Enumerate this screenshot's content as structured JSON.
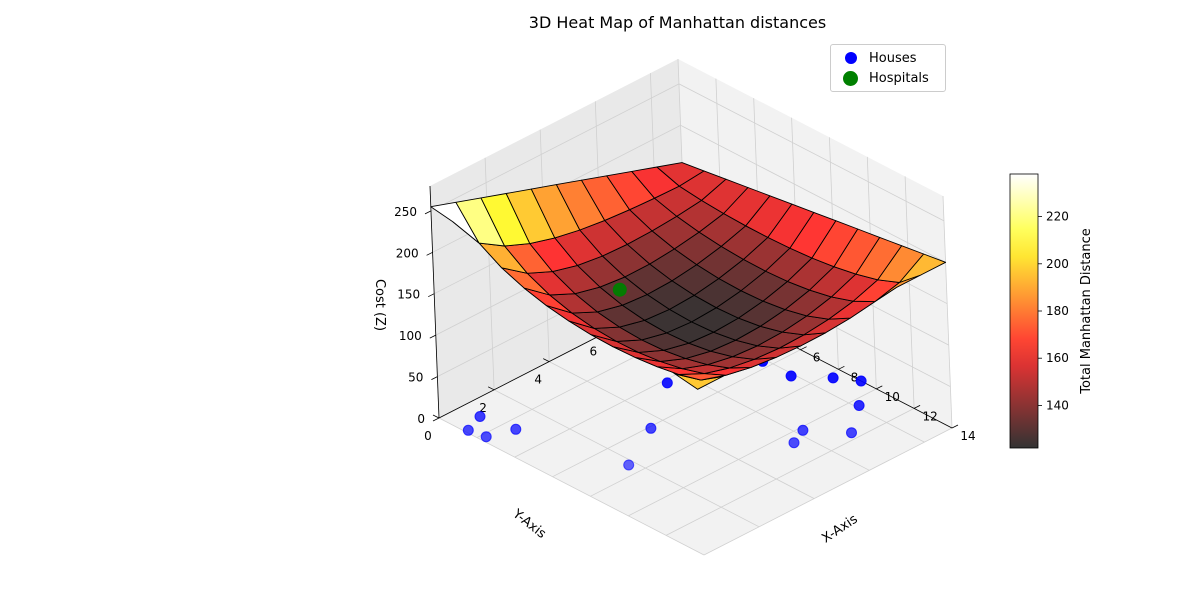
{
  "chart_data": {
    "type": "surface3d",
    "title": "3D Heat Map of Manhattan distances",
    "xlabel": "X-Axis",
    "ylabel": "Y-Axis",
    "zlabel": "Cost (Z)",
    "xlim": [
      0,
      14
    ],
    "ylim": [
      0,
      9
    ],
    "zlim": [
      0,
      280
    ],
    "x_ticks": [
      0,
      2,
      4,
      6,
      8,
      10,
      12,
      14
    ],
    "y_ticks": [
      0,
      2,
      4,
      6,
      8
    ],
    "z_ticks": [
      0,
      50,
      100,
      150,
      200,
      250
    ],
    "colormap": "hot",
    "surface": {
      "x_range": [
        0,
        14
      ],
      "y_range": [
        0,
        9
      ],
      "nx": 12,
      "ny": 10,
      "z_corner_x0_y0": 255,
      "z_corner_x14_y0": 200,
      "z_corner_x0_y9": 155,
      "z_corner_x14_y9": 200,
      "z_min_approx": 122
    },
    "colorbar": {
      "label": "Total Manhattan Distance",
      "range": [
        122,
        238
      ],
      "ticks": [
        140,
        160,
        180,
        200,
        220
      ]
    },
    "series": [
      {
        "name": "Houses",
        "marker": "scatter",
        "color": "#0000ff",
        "points": [
          {
            "x": 1.0,
            "y": 0.8,
            "z": 0
          },
          {
            "x": 1.4,
            "y": 0.1,
            "z": 0
          },
          {
            "x": 2.2,
            "y": 0.2,
            "z": 0
          },
          {
            "x": 2.6,
            "y": 1.0,
            "z": 0
          },
          {
            "x": 6.1,
            "y": 3.5,
            "z": 0
          },
          {
            "x": 7.4,
            "y": 1.8,
            "z": 0
          },
          {
            "x": 10.2,
            "y": 6.2,
            "z": 0
          },
          {
            "x": 10.6,
            "y": 5.6,
            "z": 0
          },
          {
            "x": 10.4,
            "y": 8.1,
            "z": 0
          },
          {
            "x": 11.6,
            "y": 7.0,
            "z": 0
          },
          {
            "x": 9.2,
            "y": 9.0,
            "z": 0
          },
          {
            "x": 8.3,
            "y": 8.6,
            "z": 0
          },
          {
            "x": 5.6,
            "y": 7.9,
            "z": 0
          },
          {
            "x": 7.1,
            "y": 7.9,
            "z": 0
          },
          {
            "x": 4.2,
            "y": 7.4,
            "z": 0
          },
          {
            "x": 3.1,
            "y": 6.2,
            "z": 0
          },
          {
            "x": 4.2,
            "y": 5.4,
            "z": 0
          },
          {
            "x": 0.9,
            "y": 6.1,
            "z": 0
          }
        ]
      },
      {
        "name": "Hospitals",
        "marker": "scatter",
        "color": "#008000",
        "points": [
          {
            "x": 3.5,
            "y": 4.3,
            "z": 123
          }
        ]
      }
    ],
    "legend_position": "top-right",
    "grid": true
  }
}
